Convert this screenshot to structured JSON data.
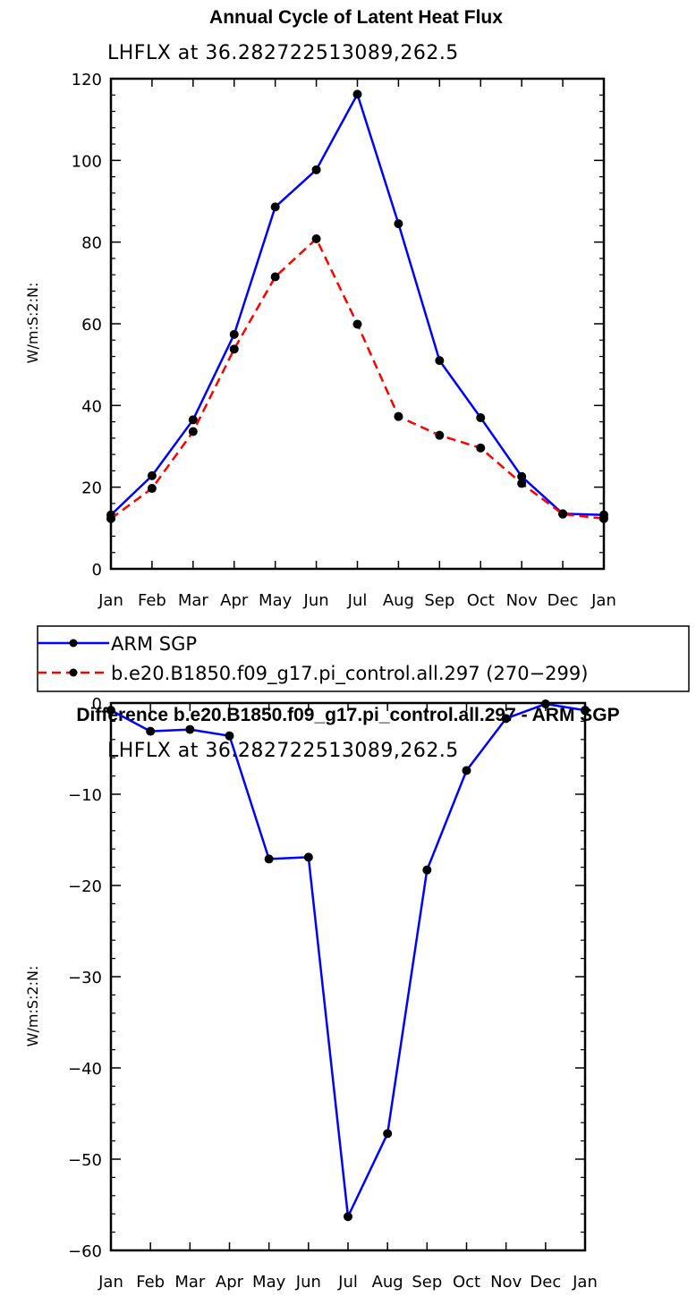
{
  "chart_data": [
    {
      "type": "line",
      "title": "Annual Cycle of Latent Heat Flux",
      "subtitle": "LHFLX  at  36.282722513089,262.5",
      "xlabel": "",
      "ylabel": "W/m:S:2:N:",
      "categories": [
        "Jan",
        "Feb",
        "Mar",
        "Apr",
        "May",
        "Jun",
        "Jul",
        "Aug",
        "Sep",
        "Oct",
        "Nov",
        "Dec",
        "Jan"
      ],
      "ylim": [
        0,
        120
      ],
      "yticks": [
        0,
        20,
        40,
        60,
        80,
        100,
        120
      ],
      "yticks_text": [
        "0",
        "20",
        "40",
        "60",
        "80",
        "100",
        "120"
      ],
      "grid": false,
      "legend": "below",
      "series": [
        {
          "name": "ARM  SGP",
          "color": "#0000ff",
          "dash": "solid",
          "values": [
            13.2,
            22.8,
            36.5,
            57.4,
            88.6,
            97.7,
            116.2,
            84.5,
            51.0,
            37.0,
            22.6,
            13.5,
            13.2
          ]
        },
        {
          "name": "b.e20.B1850.f09_g17.pi_control.all.297 (270−299)",
          "color": "#ff0000",
          "dash": "dashed",
          "values": [
            12.3,
            19.7,
            33.6,
            53.8,
            71.5,
            80.8,
            59.9,
            37.3,
            32.7,
            29.6,
            20.9,
            13.4,
            12.3
          ]
        }
      ]
    },
    {
      "type": "line",
      "title": "Difference b.e20.B1850.f09_g17.pi_control.all.297 - ARM SGP",
      "subtitle": "LHFLX  at  36.282722513089,262.5",
      "xlabel": "",
      "ylabel": "W/m:S:2:N:",
      "categories": [
        "Jan",
        "Feb",
        "Mar",
        "Apr",
        "May",
        "Jun",
        "Jul",
        "Aug",
        "Sep",
        "Oct",
        "Nov",
        "Dec",
        "Jan"
      ],
      "ylim": [
        -60,
        0
      ],
      "yticks": [
        0,
        -10,
        -20,
        -30,
        -40,
        -50,
        -60
      ],
      "yticks_text": [
        "0",
        "−10",
        "−20",
        "−30",
        "−40",
        "−50",
        "−60"
      ],
      "grid": false,
      "series": [
        {
          "color": "#0000ff",
          "dash": "solid",
          "values": [
            -0.8,
            -3.1,
            -2.9,
            -3.6,
            -17.1,
            -16.9,
            -56.3,
            -47.2,
            -18.3,
            -7.4,
            -1.7,
            -0.1,
            -0.8
          ]
        }
      ]
    }
  ]
}
